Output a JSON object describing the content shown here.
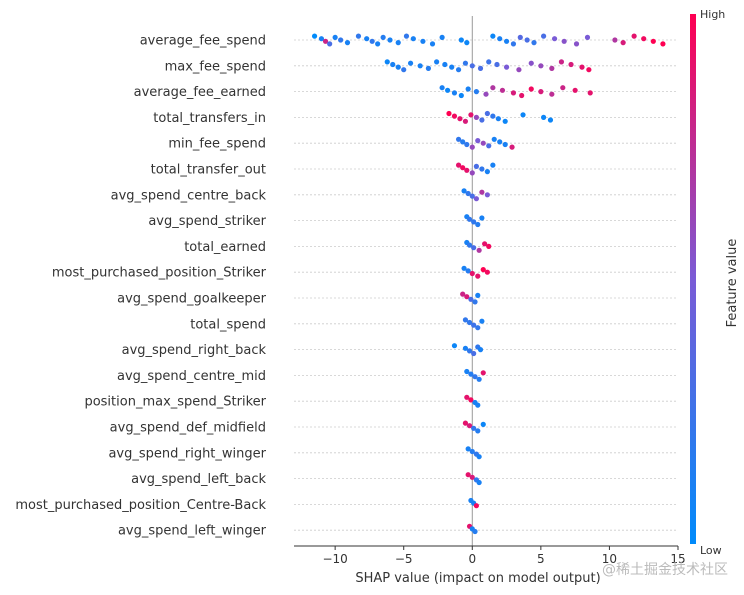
{
  "chart_data": {
    "type": "scatter",
    "subtype": "shap-beeswarm",
    "xlabel": "SHAP value (impact on model output)",
    "xlim": [
      -13,
      15
    ],
    "xticks": [
      -10,
      -5,
      0,
      5,
      10,
      15
    ],
    "colorbar": {
      "title": "Feature value",
      "high_label": "High",
      "low_label": "Low",
      "low_color": "#008bfb",
      "high_color": "#ff0052"
    },
    "grid": false,
    "features": [
      {
        "name": "average_fee_spend",
        "points": [
          [
            -11.5,
            0
          ],
          [
            -11.0,
            0.1
          ],
          [
            -10.7,
            0.8
          ],
          [
            -10.4,
            0.3
          ],
          [
            -10.0,
            0.1
          ],
          [
            -9.6,
            0.2
          ],
          [
            -9.1,
            0.1
          ],
          [
            -8.3,
            0.2
          ],
          [
            -7.7,
            0.1
          ],
          [
            -7.3,
            0.2
          ],
          [
            -6.9,
            0.1
          ],
          [
            -6.5,
            0.15
          ],
          [
            -6.0,
            0.1
          ],
          [
            -5.4,
            0.1
          ],
          [
            -4.8,
            0.2
          ],
          [
            -4.3,
            0.1
          ],
          [
            -3.6,
            0.1
          ],
          [
            -2.9,
            0.1
          ],
          [
            -2.2,
            0.1
          ],
          [
            -0.8,
            0.05
          ],
          [
            -0.4,
            0.05
          ],
          [
            1.5,
            0.05
          ],
          [
            2.0,
            0.1
          ],
          [
            2.5,
            0.1
          ],
          [
            3.0,
            0.2
          ],
          [
            3.5,
            0.35
          ],
          [
            4.0,
            0.3
          ],
          [
            4.5,
            0.2
          ],
          [
            5.2,
            0.3
          ],
          [
            6.0,
            0.5
          ],
          [
            6.7,
            0.55
          ],
          [
            7.6,
            0.55
          ],
          [
            8.4,
            0.5
          ],
          [
            10.4,
            0.7
          ],
          [
            11.0,
            0.85
          ],
          [
            11.8,
            0.9
          ],
          [
            12.5,
            0.95
          ],
          [
            13.2,
            1.0
          ],
          [
            13.9,
            1.0
          ]
        ]
      },
      {
        "name": "max_fee_spend",
        "points": [
          [
            -6.2,
            0.05
          ],
          [
            -5.8,
            0.1
          ],
          [
            -5.4,
            0.1
          ],
          [
            -5.0,
            0.2
          ],
          [
            -4.5,
            0.1
          ],
          [
            -3.8,
            0.1
          ],
          [
            -3.2,
            0.15
          ],
          [
            -2.6,
            0.1
          ],
          [
            -2.0,
            0.1
          ],
          [
            -1.5,
            0.1
          ],
          [
            -1.0,
            0.15
          ],
          [
            -0.5,
            0.2
          ],
          [
            0.0,
            0.3
          ],
          [
            0.6,
            0.3
          ],
          [
            1.2,
            0.25
          ],
          [
            1.8,
            0.3
          ],
          [
            2.5,
            0.5
          ],
          [
            3.4,
            0.6
          ],
          [
            4.3,
            0.55
          ],
          [
            5.0,
            0.6
          ],
          [
            5.8,
            0.7
          ],
          [
            6.5,
            0.8
          ],
          [
            7.2,
            0.85
          ],
          [
            8.0,
            0.9
          ],
          [
            8.5,
            0.95
          ]
        ]
      },
      {
        "name": "average_fee_earned",
        "points": [
          [
            -2.2,
            0.1
          ],
          [
            -1.8,
            0.05
          ],
          [
            -1.3,
            0.1
          ],
          [
            -0.8,
            0.05
          ],
          [
            -0.3,
            0.1
          ],
          [
            0.3,
            0.15
          ],
          [
            1.0,
            0.6
          ],
          [
            1.5,
            0.7
          ],
          [
            2.2,
            0.75
          ],
          [
            3.0,
            0.85
          ],
          [
            3.6,
            0.9
          ],
          [
            4.3,
            0.95
          ],
          [
            5.0,
            0.85
          ],
          [
            5.8,
            0.75
          ],
          [
            6.6,
            0.8
          ],
          [
            7.5,
            0.9
          ],
          [
            8.6,
            0.9
          ]
        ]
      },
      {
        "name": "total_transfers_in",
        "points": [
          [
            -1.7,
            1.0
          ],
          [
            -1.3,
            0.95
          ],
          [
            -0.9,
            0.9
          ],
          [
            -0.5,
            0.85
          ],
          [
            -0.1,
            0.9
          ],
          [
            0.3,
            0.6
          ],
          [
            0.7,
            0.3
          ],
          [
            1.1,
            0.3
          ],
          [
            1.5,
            0.2
          ],
          [
            1.9,
            0.1
          ],
          [
            2.4,
            0.05
          ],
          [
            3.7,
            0.05
          ],
          [
            5.2,
            0.05
          ],
          [
            5.7,
            0.05
          ]
        ]
      },
      {
        "name": "min_fee_spend",
        "points": [
          [
            -1.0,
            0.2
          ],
          [
            -0.7,
            0.15
          ],
          [
            -0.4,
            0.2
          ],
          [
            0.0,
            0.6
          ],
          [
            0.4,
            0.5
          ],
          [
            0.8,
            0.6
          ],
          [
            1.2,
            0.3
          ],
          [
            1.6,
            0.1
          ],
          [
            2.0,
            0.1
          ],
          [
            2.4,
            0.1
          ],
          [
            2.9,
            0.85
          ]
        ]
      },
      {
        "name": "total_transfer_out",
        "points": [
          [
            -1.0,
            0.9
          ],
          [
            -0.7,
            0.95
          ],
          [
            -0.4,
            0.9
          ],
          [
            0.0,
            0.6
          ],
          [
            0.3,
            0.3
          ],
          [
            0.7,
            0.2
          ],
          [
            1.1,
            0.1
          ],
          [
            1.5,
            0.1
          ]
        ]
      },
      {
        "name": "avg_spend_centre_back",
        "points": [
          [
            -0.6,
            0.1
          ],
          [
            -0.3,
            0.2
          ],
          [
            0.0,
            0.3
          ],
          [
            0.3,
            0.5
          ],
          [
            0.7,
            0.7
          ],
          [
            1.1,
            0.5
          ]
        ]
      },
      {
        "name": "avg_spend_striker",
        "points": [
          [
            -0.4,
            0.1
          ],
          [
            -0.2,
            0.2
          ],
          [
            0.1,
            0.2
          ],
          [
            0.4,
            0.15
          ],
          [
            0.7,
            0.1
          ]
        ]
      },
      {
        "name": "total_earned",
        "points": [
          [
            -0.4,
            0.1
          ],
          [
            -0.2,
            0.2
          ],
          [
            0.1,
            0.3
          ],
          [
            0.5,
            0.7
          ],
          [
            0.9,
            0.9
          ],
          [
            1.2,
            0.95
          ]
        ]
      },
      {
        "name": "most_purchased_position_Striker",
        "points": [
          [
            -0.6,
            0.1
          ],
          [
            -0.3,
            0.15
          ],
          [
            0.0,
            0.9
          ],
          [
            0.4,
            0.9
          ],
          [
            0.8,
            1.0
          ],
          [
            1.1,
            0.95
          ]
        ]
      },
      {
        "name": "avg_spend_goalkeeper",
        "points": [
          [
            -0.7,
            0.8
          ],
          [
            -0.4,
            0.85
          ],
          [
            -0.1,
            0.3
          ],
          [
            0.2,
            0.2
          ],
          [
            0.4,
            0.1
          ]
        ]
      },
      {
        "name": "total_spend",
        "points": [
          [
            -0.5,
            0.2
          ],
          [
            -0.2,
            0.2
          ],
          [
            0.1,
            0.25
          ],
          [
            0.4,
            0.2
          ],
          [
            0.7,
            0.1
          ]
        ]
      },
      {
        "name": "avg_spend_right_back",
        "points": [
          [
            -1.3,
            0.05
          ],
          [
            -0.5,
            0.1
          ],
          [
            -0.2,
            0.2
          ],
          [
            0.1,
            0.3
          ],
          [
            0.4,
            0.2
          ],
          [
            0.6,
            0.1
          ]
        ]
      },
      {
        "name": "avg_spend_centre_mid",
        "points": [
          [
            -0.4,
            0.1
          ],
          [
            -0.1,
            0.15
          ],
          [
            0.2,
            0.2
          ],
          [
            0.5,
            0.15
          ],
          [
            0.8,
            0.9
          ]
        ]
      },
      {
        "name": "position_max_spend_Striker",
        "points": [
          [
            -0.4,
            0.9
          ],
          [
            -0.1,
            0.95
          ],
          [
            0.2,
            0.1
          ],
          [
            0.4,
            0.1
          ]
        ]
      },
      {
        "name": "avg_spend_def_midfield",
        "points": [
          [
            -0.5,
            0.9
          ],
          [
            -0.2,
            0.85
          ],
          [
            0.1,
            0.2
          ],
          [
            0.4,
            0.15
          ],
          [
            0.8,
            0.05
          ]
        ]
      },
      {
        "name": "avg_spend_right_winger",
        "points": [
          [
            -0.3,
            0.1
          ],
          [
            0.0,
            0.15
          ],
          [
            0.3,
            0.2
          ],
          [
            0.5,
            0.1
          ]
        ]
      },
      {
        "name": "avg_spend_left_back",
        "points": [
          [
            -0.3,
            0.9
          ],
          [
            0.0,
            0.85
          ],
          [
            0.3,
            0.2
          ],
          [
            0.5,
            0.1
          ]
        ]
      },
      {
        "name": "most_purchased_position_Centre-Back",
        "points": [
          [
            -0.1,
            0.1
          ],
          [
            0.1,
            0.1
          ],
          [
            0.3,
            0.95
          ]
        ]
      },
      {
        "name": "avg_spend_left_winger",
        "points": [
          [
            -0.2,
            0.9
          ],
          [
            0.0,
            0.1
          ],
          [
            0.2,
            0.15
          ]
        ]
      }
    ]
  },
  "watermark": "@稀土掘金技术社区"
}
